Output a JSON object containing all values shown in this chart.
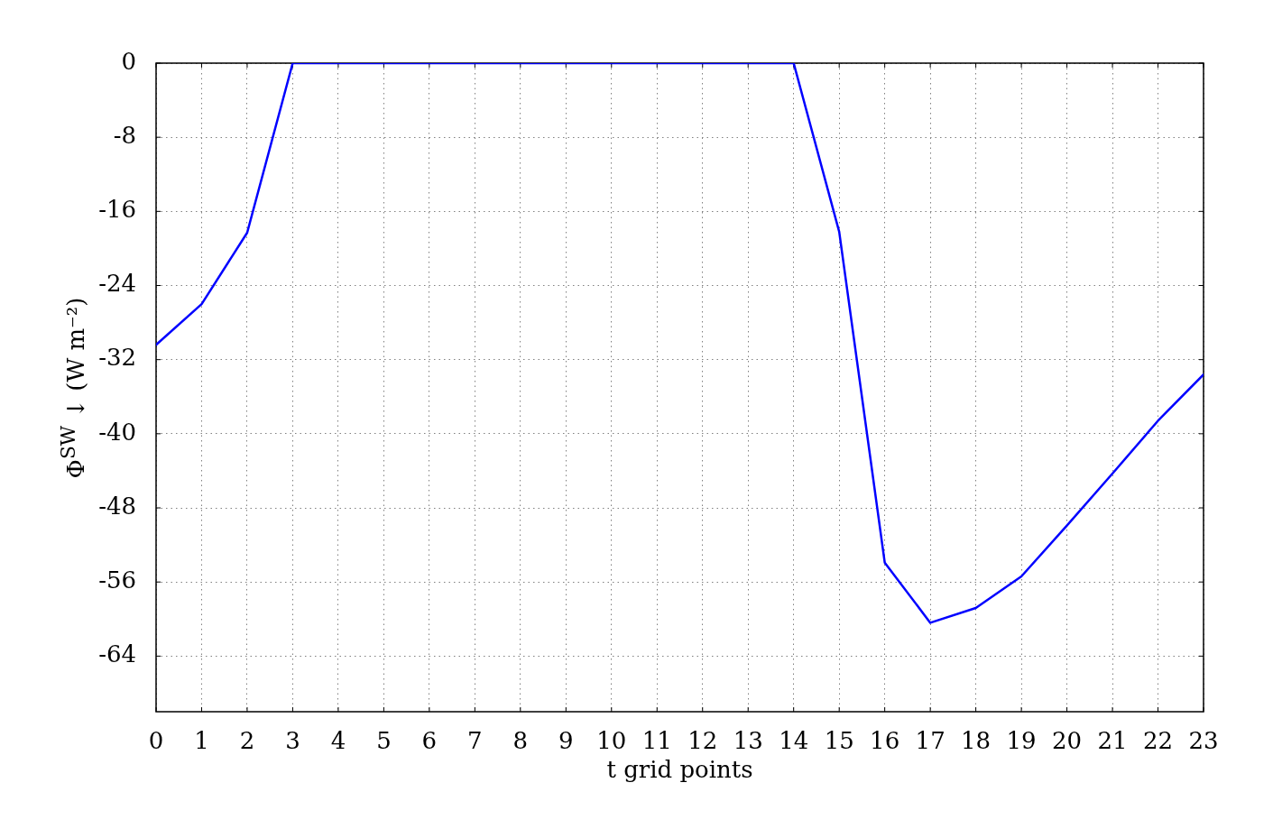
{
  "chart_data": {
    "type": "line",
    "xlabel": "t grid points",
    "ylabel": "Φ$^{SW}$ ↓ (W m⁻²)",
    "x": [
      0,
      1,
      2,
      3,
      4,
      5,
      6,
      7,
      8,
      9,
      10,
      11,
      12,
      13,
      14,
      15,
      16,
      17,
      18,
      19,
      20,
      21,
      22,
      23
    ],
    "series": [
      {
        "color": "#0000ff",
        "values": [
          -30.4,
          -26,
          -18.3,
          0,
          0,
          0,
          0,
          0,
          0,
          0,
          0,
          0,
          0,
          0,
          0,
          -18.2,
          -53.9,
          -60.4,
          -58.8,
          -55.4,
          -49.9,
          -44.3,
          -38.6,
          -33.6
        ]
      }
    ],
    "xlim": [
      0,
      23
    ],
    "ylim": [
      -70,
      0
    ],
    "xticks": [
      0,
      1,
      2,
      3,
      4,
      5,
      6,
      7,
      8,
      9,
      10,
      11,
      12,
      13,
      14,
      15,
      16,
      17,
      18,
      19,
      20,
      21,
      22,
      23
    ],
    "yticks": [
      -64,
      -56,
      -48,
      -40,
      -32,
      -24,
      -16,
      -8,
      0
    ],
    "grid": true
  }
}
